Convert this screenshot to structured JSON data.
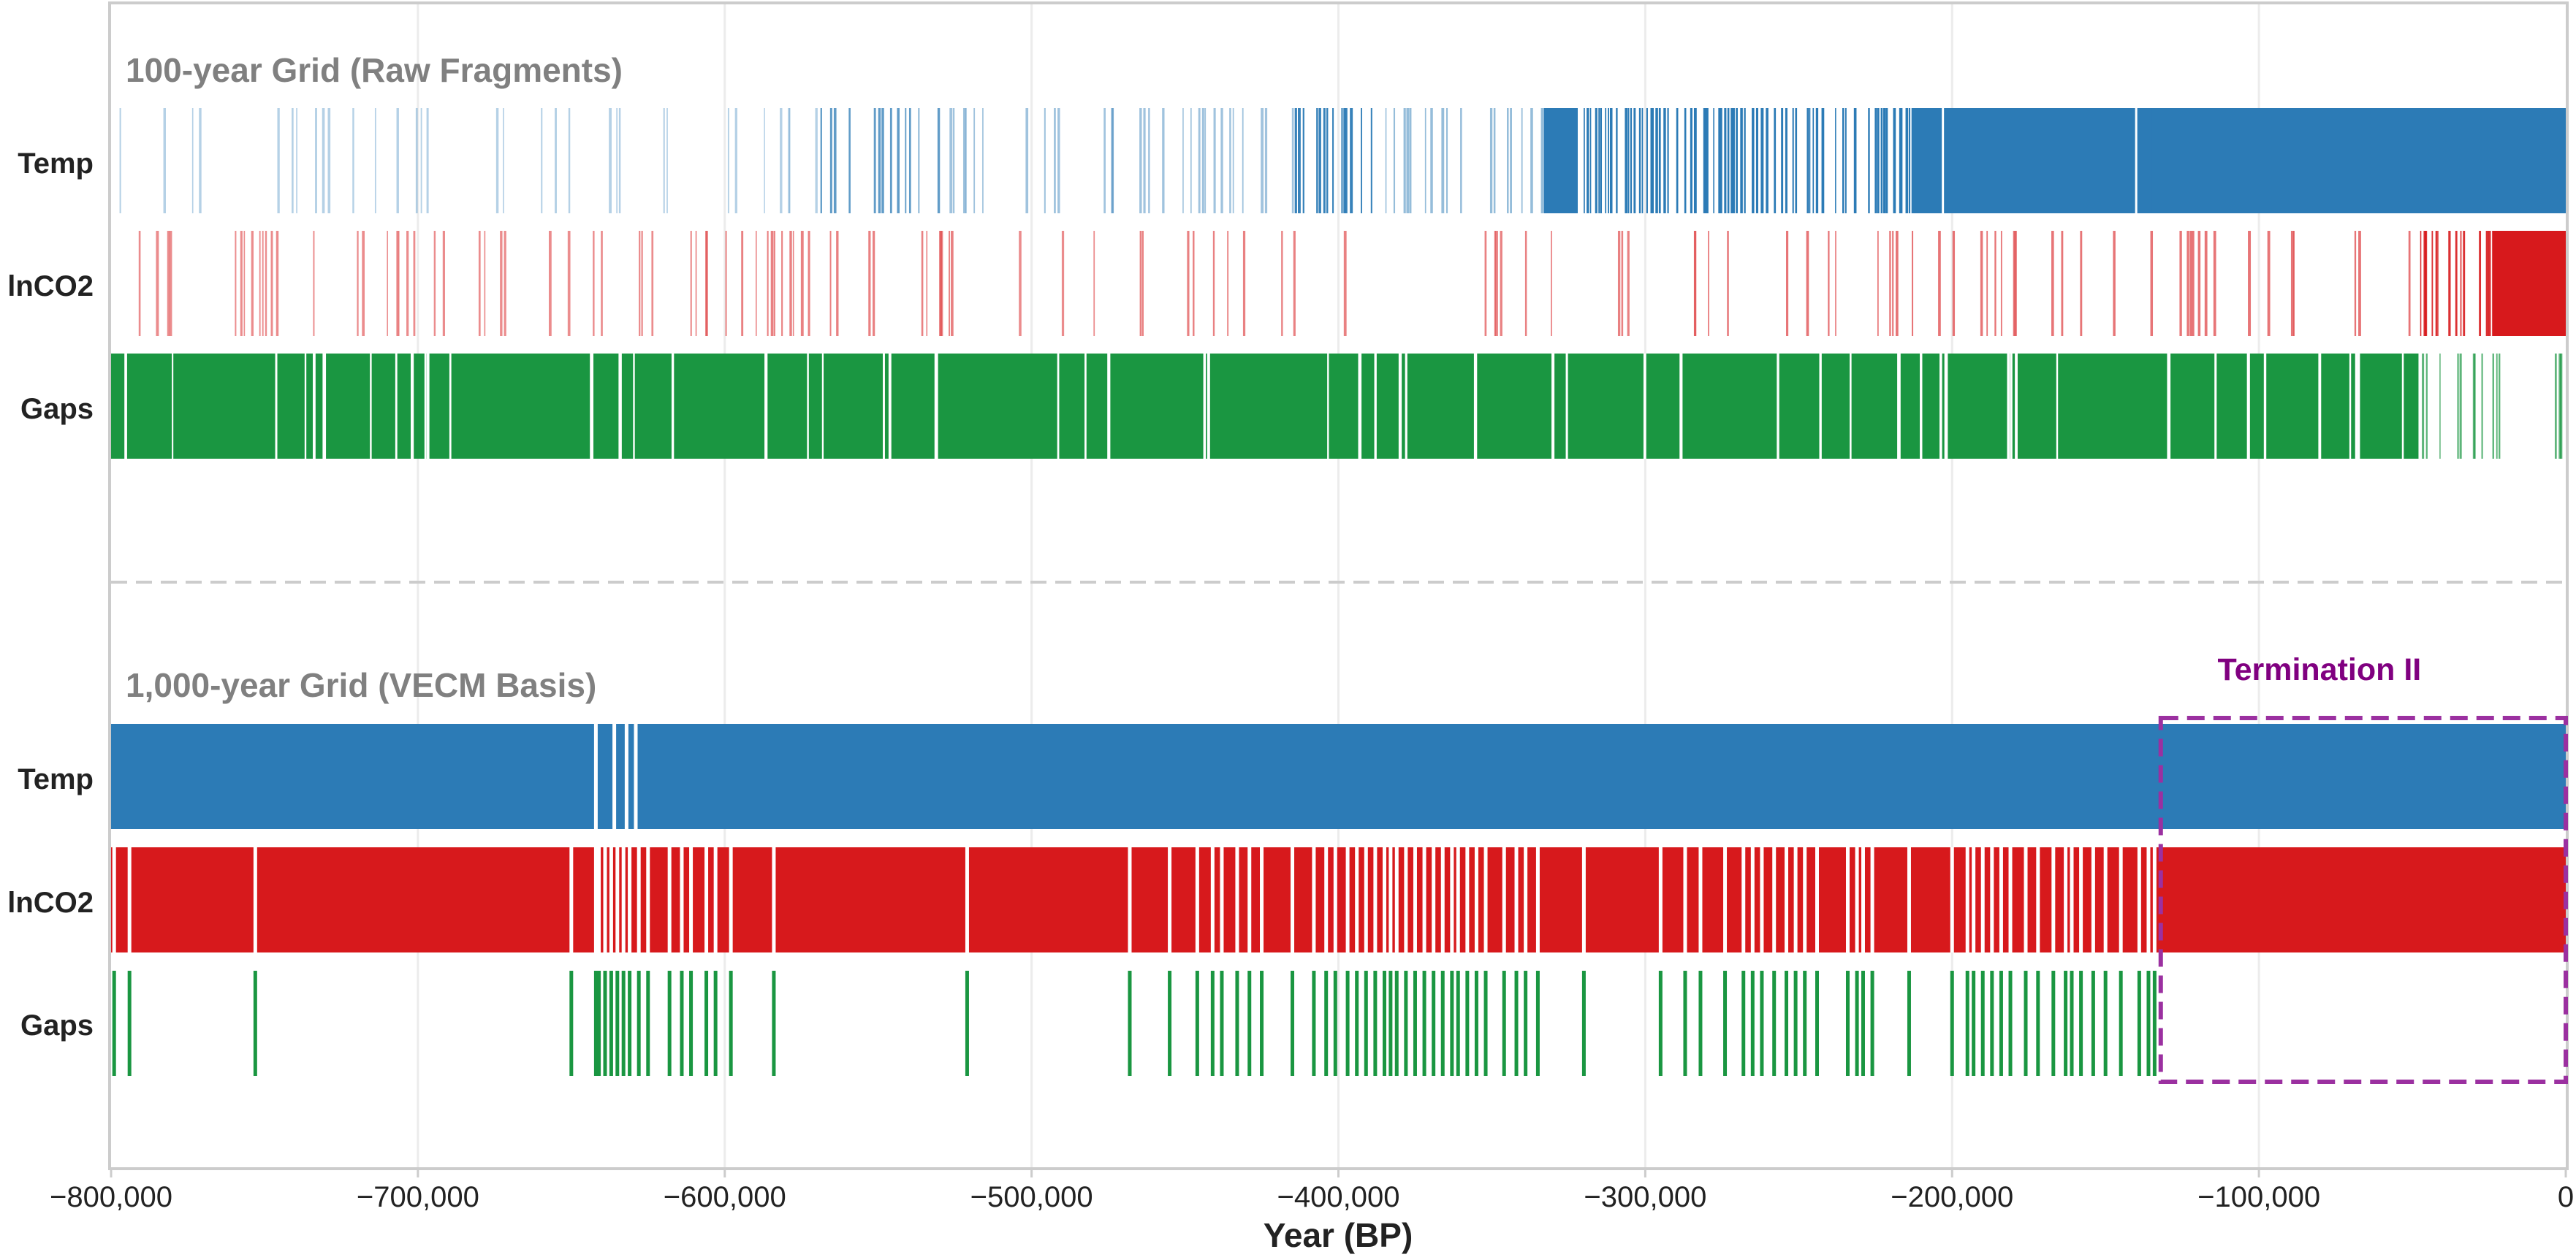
{
  "chart_data": {
    "type": "timeline",
    "xlabel": "Year (BP)",
    "xlim": [
      -800000,
      0
    ],
    "xticks": [
      -800000,
      -700000,
      -600000,
      -500000,
      -400000,
      -300000,
      -200000,
      -100000,
      0
    ],
    "xtick_labels": [
      "−800,000",
      "−700,000",
      "−600,000",
      "−500,000",
      "−400,000",
      "−300,000",
      "−200,000",
      "−100,000",
      "0"
    ],
    "grid": true,
    "colors": {
      "temp": "#2c7bb6",
      "lnco2": "#d7191c",
      "gaps": "#1a9641",
      "annotation": "#9b30a0",
      "separator": "#cccccc",
      "title": "#808080"
    },
    "panels": [
      {
        "title": "100-year Grid (Raw Fragments)",
        "rows": [
          {
            "label": "Temp",
            "color": "#2c7bb6",
            "segments": [
              {
                "start": -800000,
                "end": -570000,
                "density": 0.16,
                "opacity": 0.35,
                "seed": 11
              },
              {
                "start": -570000,
                "end": -530000,
                "density": 0.45,
                "opacity": 0.75,
                "seed": 12
              },
              {
                "start": -530000,
                "end": -415000,
                "density": 0.2,
                "opacity": 0.45,
                "seed": 13
              },
              {
                "start": -415000,
                "end": -388000,
                "density": 0.55,
                "opacity": 0.95,
                "seed": 14
              },
              {
                "start": -388000,
                "end": -333000,
                "density": 0.22,
                "opacity": 0.5,
                "seed": 15
              },
              {
                "start": -333000,
                "end": -135000,
                "density": 0.6,
                "opacity": 1.0,
                "seed": 16
              }
            ],
            "solid": [
              [
                -333000,
                -322000
              ],
              [
                -213000,
                -135000
              ],
              [
                -135000,
                0
              ]
            ],
            "breaks": [
              -203000,
              -140000
            ]
          },
          {
            "label": "lnCO2",
            "color": "#d7191c",
            "segments": [
              {
                "start": -800000,
                "end": -610000,
                "density": 0.2,
                "opacity": 0.5,
                "seed": 21
              },
              {
                "start": -610000,
                "end": -515000,
                "density": 0.24,
                "opacity": 0.55,
                "seed": 22
              },
              {
                "start": -515000,
                "end": -470000,
                "density": 0.1,
                "opacity": 0.5,
                "seed": 23
              },
              {
                "start": -470000,
                "end": -395000,
                "density": 0.15,
                "opacity": 0.55,
                "seed": 24
              },
              {
                "start": -355000,
                "end": -290000,
                "density": 0.18,
                "opacity": 0.55,
                "seed": 25
              },
              {
                "start": -290000,
                "end": -48000,
                "density": 0.14,
                "opacity": 0.6,
                "seed": 26
              },
              {
                "start": -48000,
                "end": -24000,
                "density": 0.6,
                "opacity": 0.9,
                "seed": 27
              }
            ],
            "solid": [
              [
                -24000,
                0
              ]
            ],
            "breaks": []
          },
          {
            "label": "Gaps",
            "color": "#1a9641",
            "segments": [],
            "solid": [
              [
                -800000,
                -15000
              ]
            ],
            "breaks_density": 0.07,
            "breaks_seed": 31,
            "tail": {
              "start": -48000,
              "end": 0,
              "density": 0.25,
              "opacity": 0.7,
              "seed": 32
            }
          }
        ]
      },
      {
        "title": "1,000-year Grid (VECM Basis)",
        "rows": [
          {
            "label": "Temp",
            "color": "#2c7bb6",
            "solid": [
              [
                -800000,
                0
              ]
            ],
            "breaks": [
              -642000,
              -636000,
              -632000,
              -629000
            ]
          },
          {
            "label": "lnCO2",
            "color": "#d7191c",
            "solid": [
              [
                -800000,
                0
              ]
            ],
            "breaks": [
              -799000,
              -794000,
              -753000,
              -650000,
              -642000,
              -641000,
              -639000,
              -637000,
              -635000,
              -633000,
              -631000,
              -628000,
              -625000,
              -618000,
              -614000,
              -611000,
              -606000,
              -603000,
              -598000,
              -584000,
              -521000,
              -468000,
              -455000,
              -446000,
              -441000,
              -438000,
              -433000,
              -429000,
              -425000,
              -415000,
              -408000,
              -404000,
              -401000,
              -397000,
              -394000,
              -391000,
              -388000,
              -385000,
              -383000,
              -381000,
              -378000,
              -375000,
              -372000,
              -369000,
              -366000,
              -363000,
              -361000,
              -358000,
              -355000,
              -352000,
              -346000,
              -342000,
              -339000,
              -335000,
              -320000,
              -295000,
              -287000,
              -282000,
              -274000,
              -268000,
              -265000,
              -262000,
              -258000,
              -254000,
              -251000,
              -248000,
              -244000,
              -234000,
              -231000,
              -229000,
              -226000,
              -214000,
              -200000,
              -195000,
              -193000,
              -190000,
              -187000,
              -184000,
              -181000,
              -176000,
              -172000,
              -167000,
              -163000,
              -161000,
              -158000,
              -154000,
              -150000,
              -145000,
              -139000,
              -136000,
              -134000
            ]
          },
          {
            "label": "Gaps",
            "color": "#1a9641",
            "marks": [
              -799000,
              -794000,
              -753000,
              -650000,
              -642000,
              -641000,
              -639000,
              -637000,
              -635000,
              -633000,
              -631000,
              -628000,
              -625000,
              -618000,
              -614000,
              -611000,
              -606000,
              -603000,
              -598000,
              -584000,
              -521000,
              -468000,
              -455000,
              -446000,
              -441000,
              -438000,
              -433000,
              -429000,
              -425000,
              -415000,
              -408000,
              -404000,
              -401000,
              -397000,
              -394000,
              -391000,
              -388000,
              -385000,
              -383000,
              -381000,
              -378000,
              -375000,
              -372000,
              -369000,
              -366000,
              -363000,
              -361000,
              -358000,
              -355000,
              -352000,
              -346000,
              -342000,
              -339000,
              -335000,
              -320000,
              -295000,
              -287000,
              -282000,
              -274000,
              -268000,
              -265000,
              -262000,
              -258000,
              -254000,
              -251000,
              -248000,
              -244000,
              -234000,
              -231000,
              -229000,
              -226000,
              -214000,
              -200000,
              -195000,
              -193000,
              -190000,
              -187000,
              -184000,
              -181000,
              -176000,
              -172000,
              -167000,
              -163000,
              -161000,
              -158000,
              -154000,
              -150000,
              -145000,
              -139000,
              -136000,
              -134000
            ]
          }
        ]
      }
    ],
    "annotation": {
      "label": "Termination II",
      "x_start": -132000,
      "x_end": 0
    }
  }
}
